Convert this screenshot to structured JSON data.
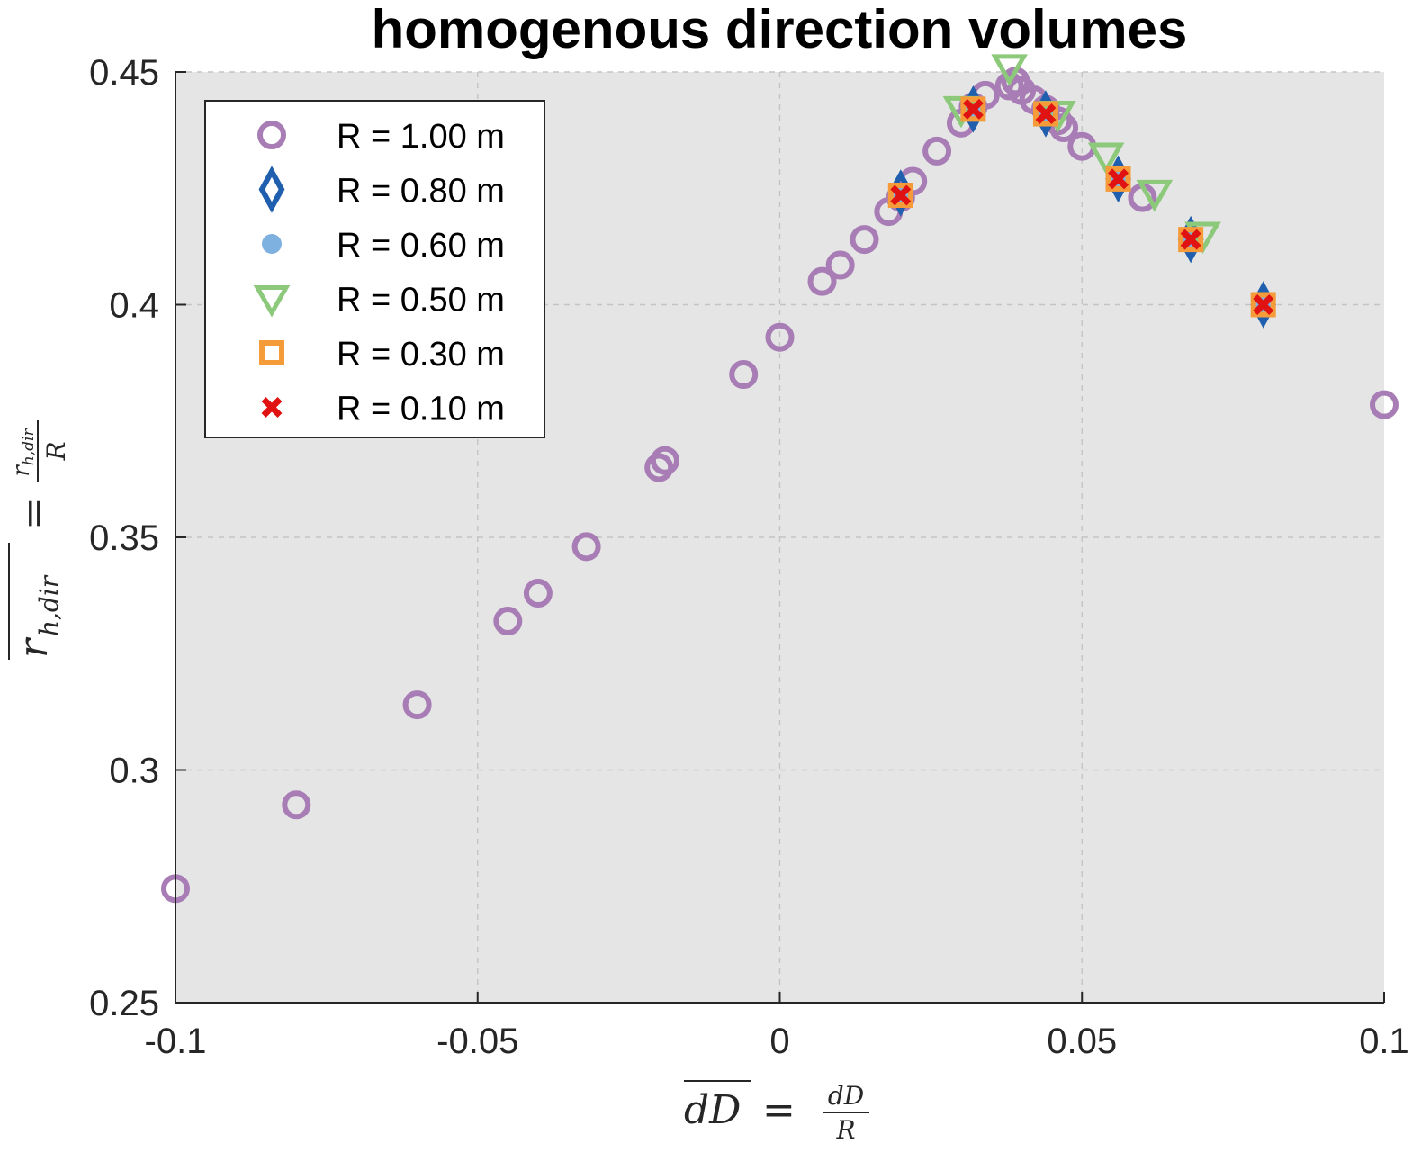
{
  "chart_data": {
    "type": "scatter",
    "title": "homogenous direction volumes",
    "xlabel": "dD = dD/R",
    "ylabel": "r_h,dir = r_h,dir/R",
    "xlim": [
      -0.1,
      0.1
    ],
    "ylim": [
      0.25,
      0.45
    ],
    "x_ticks": [
      -0.1,
      -0.05,
      0,
      0.05,
      0.1
    ],
    "x_tick_labels": [
      "-0.1",
      "-0.05",
      "0",
      "0.05",
      "0.1"
    ],
    "y_ticks": [
      0.25,
      0.3,
      0.35,
      0.4,
      0.45
    ],
    "y_tick_labels": [
      "0.25",
      "0.3",
      "0.35",
      "0.4",
      "0.45"
    ],
    "grid": true,
    "legend_position": "top-left",
    "background_color": "#e5e5e5",
    "series": [
      {
        "name": "R = 1.00 m",
        "marker": "circle",
        "color": "#a87cb5",
        "x": [
          -0.1,
          -0.08,
          -0.06,
          -0.045,
          -0.04,
          -0.032,
          -0.02,
          -0.019,
          -0.006,
          0.0,
          0.007,
          0.01,
          0.014,
          0.018,
          0.02,
          0.022,
          0.026,
          0.03,
          0.032,
          0.034,
          0.038,
          0.039,
          0.04,
          0.042,
          0.044,
          0.046,
          0.047,
          0.05,
          0.06
        ],
        "y": [
          0.2745,
          0.2925,
          0.314,
          0.332,
          0.338,
          0.348,
          0.365,
          0.3665,
          0.385,
          0.393,
          0.405,
          0.4085,
          0.414,
          0.42,
          0.423,
          0.4265,
          0.433,
          0.439,
          0.4425,
          0.445,
          0.447,
          0.448,
          0.446,
          0.444,
          0.442,
          0.4395,
          0.438,
          0.434,
          0.423
        ]
      },
      {
        "name": "R = 0.80 m",
        "marker": "diamond",
        "color": "#1f5fad",
        "x": [
          0.02,
          0.032,
          0.044,
          0.056,
          0.068,
          0.08
        ],
        "y": [
          0.424,
          0.442,
          0.441,
          0.427,
          0.414,
          0.4
        ]
      },
      {
        "name": "R = 0.60 m",
        "marker": "dot",
        "color": "#7eb0e0",
        "x": [
          0.02,
          0.032,
          0.044,
          0.056,
          0.068,
          0.08
        ],
        "y": [
          0.4235,
          0.442,
          0.441,
          0.427,
          0.414,
          0.4
        ]
      },
      {
        "name": "R = 0.50 m",
        "marker": "triangle-down",
        "color": "#8cc97a",
        "x": [
          0.03,
          0.038,
          0.046,
          0.054,
          0.062,
          0.07
        ],
        "y": [
          0.442,
          0.451,
          0.441,
          0.432,
          0.424,
          0.415
        ]
      },
      {
        "name": "R = 0.30 m",
        "marker": "square",
        "color": "#f59b3a",
        "x": [
          0.02,
          0.032,
          0.044,
          0.056,
          0.068,
          0.08
        ],
        "y": [
          0.4235,
          0.442,
          0.441,
          0.427,
          0.414,
          0.4
        ]
      },
      {
        "name": "R = 0.10 m",
        "marker": "x",
        "color": "#e01212",
        "x": [
          0.02,
          0.032,
          0.044,
          0.056,
          0.068,
          0.08
        ],
        "y": [
          0.4235,
          0.442,
          0.441,
          0.427,
          0.414,
          0.4
        ]
      },
      {
        "name": "",
        "marker": "circle",
        "color": "#a87cb5",
        "x": [
          0.1
        ],
        "y": [
          0.3785
        ]
      }
    ]
  }
}
